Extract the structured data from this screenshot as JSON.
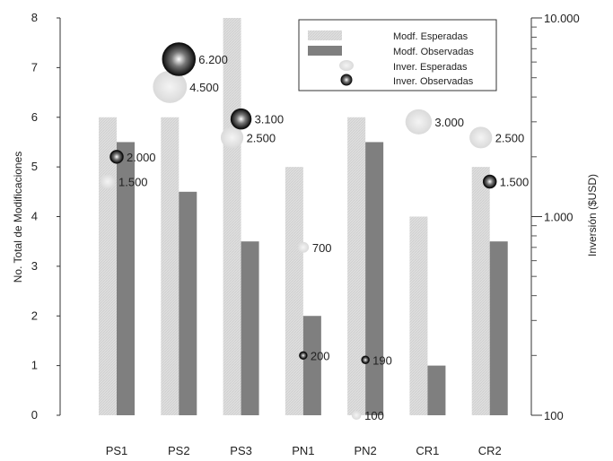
{
  "chart_data": {
    "type": "bar",
    "categories": [
      "PS1",
      "PS2",
      "PS3",
      "PN1",
      "PN2",
      "CR1",
      "CR2"
    ],
    "y_left": {
      "label": "No. Total de Modificaciones",
      "range": [
        0,
        8
      ],
      "ticks": [
        "0",
        "1",
        "2",
        "3",
        "4",
        "5",
        "6",
        "7",
        "8"
      ]
    },
    "y_right": {
      "label": "Inversión ($USD)",
      "scale": "log",
      "range": [
        100,
        10000
      ],
      "ticks": [
        {
          "value": 100,
          "label": "100"
        },
        {
          "value": 1000,
          "label": "1.000"
        },
        {
          "value": 10000,
          "label": "10.000"
        }
      ]
    },
    "series": [
      {
        "name": "Modf. Esperadas",
        "kind": "bar",
        "axis": "left",
        "color": "#dcdcdc",
        "values": [
          6,
          6,
          8,
          5,
          6,
          4,
          5
        ]
      },
      {
        "name": "Modf. Observadas",
        "kind": "bar",
        "axis": "left",
        "color": "#7f7f7f",
        "values": [
          5.5,
          4.5,
          3.5,
          2,
          5.5,
          1,
          3.5
        ]
      },
      {
        "name": "Inver. Esperadas",
        "kind": "bubble",
        "axis": "right",
        "color": "#e6e6e6",
        "values": [
          1500,
          4500,
          2500,
          700,
          100,
          3000,
          2500
        ],
        "labels": [
          "1.500",
          "4.500",
          "2.500",
          "700",
          "100",
          "3.000",
          "2.500"
        ]
      },
      {
        "name": "Inver. Observadas",
        "kind": "bubble",
        "axis": "right",
        "color": "#222222",
        "values": [
          2000,
          6200,
          3100,
          200,
          190,
          null,
          1500
        ],
        "labels": [
          "2.000",
          "6.200",
          "3.100",
          "200",
          "190",
          null,
          "1.500"
        ]
      }
    ],
    "legend_position": "top-right",
    "grid": false
  }
}
